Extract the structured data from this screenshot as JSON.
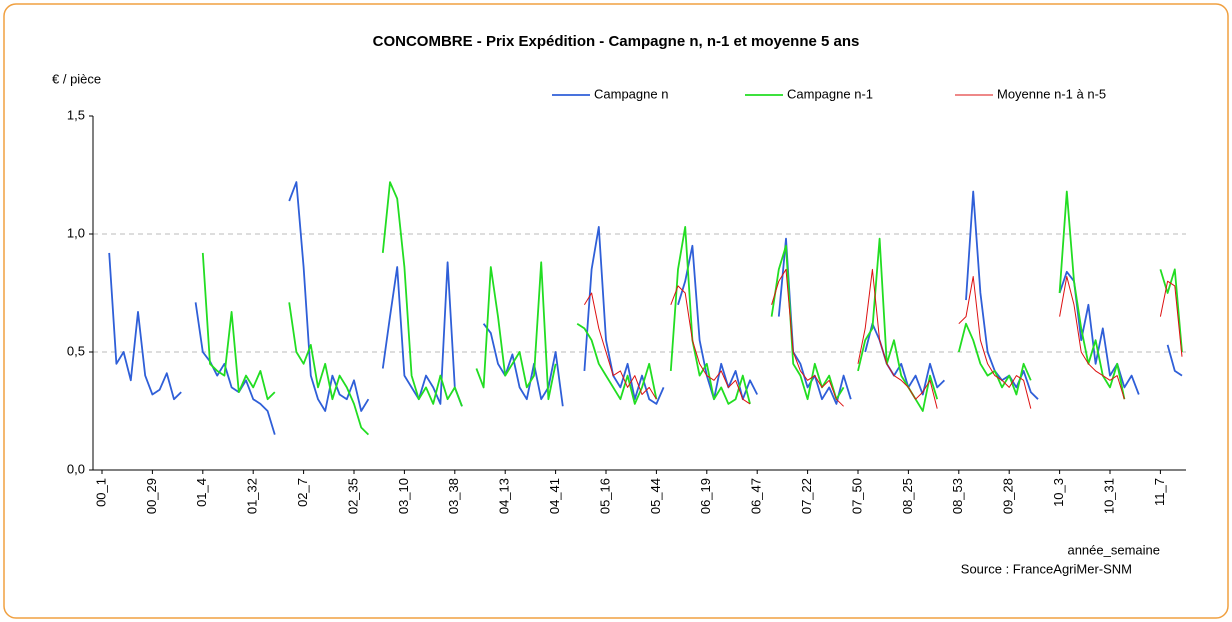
{
  "chart_data": {
    "type": "line",
    "title": "CONCOMBRE - Prix Expédition - Campagne n, n-1 et moyenne 5 ans",
    "y_label": "€ / pièce",
    "x_label": "année_semaine",
    "source": "Source : FranceAgriMer-SNM",
    "ylim": [
      0,
      1.5
    ],
    "yticks": [
      {
        "value": 0,
        "label": "0,0"
      },
      {
        "value": 0.5,
        "label": "0,5"
      },
      {
        "value": 1,
        "label": "1,0"
      },
      {
        "value": 1.5,
        "label": "1,5"
      }
    ],
    "grid": true,
    "legend": "top",
    "categories": [
      "00_1",
      null,
      null,
      null,
      null,
      null,
      null,
      "00_29",
      null,
      null,
      null,
      null,
      null,
      null,
      "01_4",
      null,
      null,
      null,
      null,
      null,
      null,
      "01_32",
      null,
      null,
      null,
      null,
      null,
      null,
      "02_7",
      null,
      null,
      null,
      null,
      null,
      null,
      "02_35",
      null,
      null,
      null,
      null,
      null,
      null,
      "03_10",
      null,
      null,
      null,
      null,
      null,
      null,
      "03_38",
      null,
      null,
      null,
      null,
      null,
      null,
      "04_13",
      null,
      null,
      null,
      null,
      null,
      null,
      "04_41",
      null,
      null,
      null,
      null,
      null,
      null,
      "05_16",
      null,
      null,
      null,
      null,
      null,
      null,
      "05_44",
      null,
      null,
      null,
      null,
      null,
      null,
      "06_19",
      null,
      null,
      null,
      null,
      null,
      null,
      "06_47",
      null,
      null,
      null,
      null,
      null,
      null,
      "07_22",
      null,
      null,
      null,
      null,
      null,
      null,
      "07_50",
      null,
      null,
      null,
      null,
      null,
      null,
      "08_25",
      null,
      null,
      null,
      null,
      null,
      null,
      "08_53",
      null,
      null,
      null,
      null,
      null,
      null,
      "09_28",
      null,
      null,
      null,
      null,
      null,
      null,
      "10_3",
      null,
      null,
      null,
      null,
      null,
      null,
      "10_31",
      null,
      null,
      null,
      null,
      null,
      null,
      "11_7",
      null,
      null,
      null
    ],
    "series": [
      {
        "name": "Campagne n",
        "color": "#2f5fd8",
        "values": [
          null,
          0.92,
          0.45,
          0.5,
          0.38,
          0.67,
          0.4,
          0.32,
          0.34,
          0.41,
          0.3,
          0.33,
          null,
          0.71,
          0.5,
          0.46,
          0.4,
          0.45,
          0.35,
          0.33,
          0.38,
          0.3,
          0.28,
          0.25,
          0.15,
          null,
          1.14,
          1.22,
          0.86,
          0.4,
          0.3,
          0.25,
          0.4,
          0.32,
          0.3,
          0.38,
          0.25,
          0.3,
          null,
          0.43,
          0.65,
          0.86,
          0.4,
          0.35,
          0.3,
          0.4,
          0.35,
          0.28,
          0.88,
          0.35,
          0.27,
          null,
          null,
          0.62,
          0.58,
          0.45,
          0.4,
          0.49,
          0.35,
          0.3,
          0.45,
          0.3,
          0.35,
          0.5,
          0.27,
          null,
          null,
          0.42,
          0.85,
          1.03,
          0.55,
          0.4,
          0.35,
          0.45,
          0.3,
          0.4,
          0.3,
          0.28,
          0.35,
          null,
          0.7,
          0.8,
          0.95,
          0.55,
          0.4,
          0.3,
          0.45,
          0.35,
          0.42,
          0.3,
          0.38,
          0.32,
          null,
          null,
          0.65,
          0.98,
          0.5,
          0.45,
          0.35,
          0.4,
          0.3,
          0.35,
          0.28,
          0.4,
          0.3,
          null,
          0.5,
          0.62,
          0.55,
          0.45,
          0.4,
          0.45,
          0.35,
          0.4,
          0.32,
          0.45,
          0.35,
          0.38,
          null,
          null,
          0.72,
          1.18,
          0.75,
          0.5,
          0.42,
          0.38,
          0.4,
          0.35,
          0.42,
          0.33,
          0.3,
          null,
          null,
          0.75,
          0.84,
          0.8,
          0.55,
          0.7,
          0.45,
          0.6,
          0.4,
          0.45,
          0.35,
          0.4,
          0.32,
          null,
          null,
          null,
          0.53,
          0.42,
          0.4
        ]
      },
      {
        "name": "Campagne n-1",
        "color": "#22dd22",
        "values": [
          null,
          null,
          null,
          null,
          null,
          null,
          null,
          null,
          null,
          null,
          null,
          null,
          null,
          null,
          0.92,
          0.45,
          0.42,
          0.4,
          0.67,
          0.33,
          0.4,
          0.35,
          0.42,
          0.3,
          0.33,
          null,
          0.71,
          0.5,
          0.45,
          0.53,
          0.35,
          0.45,
          0.3,
          0.4,
          0.35,
          0.28,
          0.18,
          0.15,
          null,
          0.92,
          1.22,
          1.15,
          0.86,
          0.4,
          0.3,
          0.35,
          0.28,
          0.4,
          0.3,
          0.35,
          0.27,
          null,
          0.43,
          0.35,
          0.86,
          0.65,
          0.4,
          0.45,
          0.5,
          0.35,
          0.4,
          0.88,
          0.3,
          0.45,
          null,
          null,
          0.62,
          0.6,
          0.55,
          0.45,
          0.4,
          0.35,
          0.3,
          0.4,
          0.28,
          0.35,
          0.45,
          0.3,
          null,
          0.42,
          0.85,
          1.03,
          0.55,
          0.4,
          0.45,
          0.3,
          0.35,
          0.28,
          0.3,
          0.4,
          0.28,
          null,
          null,
          0.65,
          0.85,
          0.95,
          0.45,
          0.4,
          0.3,
          0.45,
          0.35,
          0.4,
          0.3,
          0.35,
          null,
          0.42,
          0.55,
          0.6,
          0.98,
          0.45,
          0.55,
          0.4,
          0.35,
          0.3,
          0.25,
          0.4,
          0.3,
          null,
          null,
          0.5,
          0.62,
          0.55,
          0.45,
          0.4,
          0.42,
          0.35,
          0.4,
          0.32,
          0.45,
          0.38,
          null,
          null,
          null,
          0.75,
          1.18,
          0.8,
          0.6,
          0.45,
          0.55,
          0.4,
          0.35,
          0.45,
          0.3,
          null,
          null,
          null,
          null,
          0.85,
          0.75,
          0.85,
          0.5
        ]
      },
      {
        "name": "Moyenne n-1 à n-5",
        "color": "#dd1111",
        "values": [
          null,
          null,
          null,
          null,
          null,
          null,
          null,
          null,
          null,
          null,
          null,
          null,
          null,
          null,
          null,
          null,
          null,
          null,
          null,
          null,
          null,
          null,
          null,
          null,
          null,
          null,
          null,
          null,
          null,
          null,
          null,
          null,
          null,
          null,
          null,
          null,
          null,
          null,
          null,
          null,
          null,
          null,
          null,
          null,
          null,
          null,
          null,
          null,
          null,
          null,
          null,
          null,
          null,
          null,
          null,
          null,
          null,
          null,
          null,
          null,
          null,
          null,
          null,
          null,
          null,
          null,
          null,
          0.7,
          0.75,
          0.6,
          0.5,
          0.4,
          0.42,
          0.35,
          0.4,
          0.32,
          0.35,
          0.3,
          null,
          0.7,
          0.78,
          0.75,
          0.55,
          0.45,
          0.4,
          0.38,
          0.42,
          0.35,
          0.38,
          0.3,
          0.28,
          null,
          null,
          0.7,
          0.8,
          0.85,
          0.5,
          0.42,
          0.38,
          0.4,
          0.35,
          0.38,
          0.3,
          0.27,
          null,
          0.45,
          0.6,
          0.85,
          0.55,
          0.45,
          0.4,
          0.38,
          0.35,
          0.3,
          0.33,
          0.38,
          0.26,
          null,
          null,
          0.62,
          0.65,
          0.82,
          0.55,
          0.45,
          0.4,
          0.38,
          0.35,
          0.4,
          0.38,
          0.26,
          null,
          null,
          null,
          0.65,
          0.82,
          0.7,
          0.5,
          0.45,
          0.42,
          0.4,
          0.38,
          0.4,
          0.3,
          null,
          null,
          null,
          null,
          0.65,
          0.8,
          0.78,
          0.48
        ]
      }
    ]
  }
}
